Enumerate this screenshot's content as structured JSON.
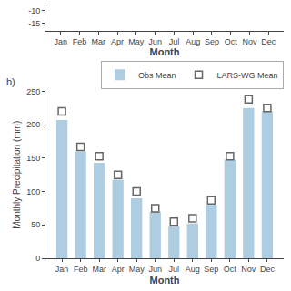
{
  "chart_data": [
    {
      "type": "line",
      "xlabel": "Month",
      "categories": [
        "Jan",
        "Feb",
        "Mar",
        "Apr",
        "May",
        "Jun",
        "Jul",
        "Aug",
        "Sep",
        "Oct",
        "Nov",
        "Dec"
      ],
      "series": [],
      "ylim": [
        -18,
        -8
      ],
      "yticks": [
        -15,
        -10
      ],
      "grid": false
    },
    {
      "type": "bar",
      "xlabel": "Month",
      "ylabel": "Monthly Precipitation (mm)",
      "annotations": [
        "b)"
      ],
      "categories": [
        "Jan",
        "Feb",
        "Mar",
        "Apr",
        "May",
        "Jun",
        "Jul",
        "Aug",
        "Sep",
        "Oct",
        "Nov",
        "Dec"
      ],
      "series": [
        {
          "name": "Obs Mean",
          "type": "bar",
          "color": "#aecde0",
          "values": [
            207,
            160,
            143,
            118,
            90,
            70,
            48,
            52,
            80,
            148,
            225,
            220
          ]
        },
        {
          "name": "LARS-WG Mean",
          "type": "scatter",
          "marker": "square-open",
          "color": "#666666",
          "values": [
            220,
            167,
            153,
            125,
            100,
            75,
            55,
            60,
            87,
            153,
            238,
            225
          ]
        }
      ],
      "ylim": [
        0,
        250
      ],
      "yticks": [
        0,
        50,
        100,
        150,
        200,
        250
      ],
      "grid": false,
      "legend": "upper right"
    }
  ]
}
